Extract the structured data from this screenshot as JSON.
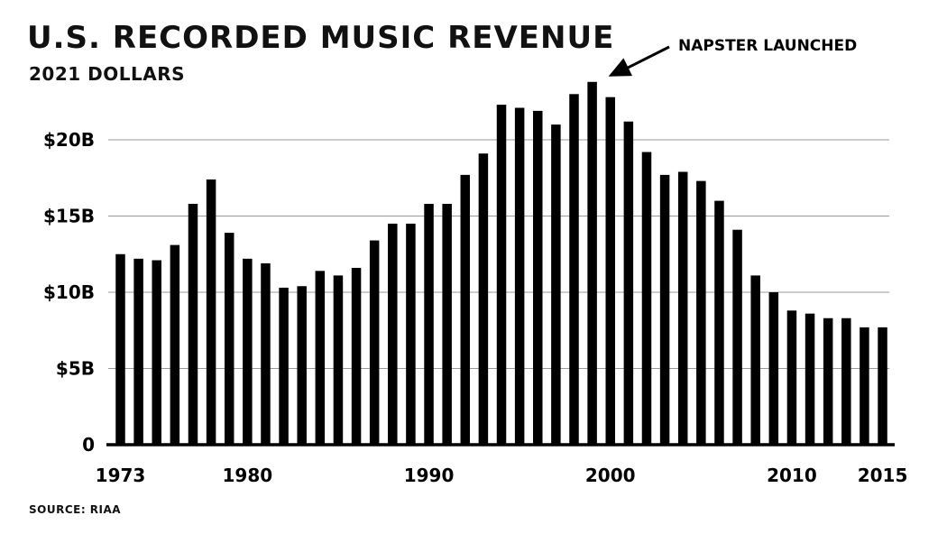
{
  "header": {
    "title": "U.S. RECORDED MUSIC REVENUE",
    "subtitle": "2021 DOLLARS"
  },
  "footer": {
    "source": "SOURCE: RIAA"
  },
  "chart_data": {
    "type": "bar",
    "ylim": [
      0,
      25
    ],
    "grid": true,
    "y_ticks": [
      {
        "value": 0,
        "label": "0"
      },
      {
        "value": 5,
        "label": "$5B"
      },
      {
        "value": 10,
        "label": "$10B"
      },
      {
        "value": 15,
        "label": "$15B"
      },
      {
        "value": 20,
        "label": "$20B"
      }
    ],
    "x_ticks": [
      {
        "value": 1973,
        "label": "1973"
      },
      {
        "value": 1980,
        "label": "1980"
      },
      {
        "value": 1990,
        "label": "1990"
      },
      {
        "value": 2000,
        "label": "2000"
      },
      {
        "value": 2010,
        "label": "2010"
      },
      {
        "value": 2015,
        "label": "2015"
      }
    ],
    "categories": [
      1973,
      1974,
      1975,
      1976,
      1977,
      1978,
      1979,
      1980,
      1981,
      1982,
      1983,
      1984,
      1985,
      1986,
      1987,
      1988,
      1989,
      1990,
      1991,
      1992,
      1993,
      1994,
      1995,
      1996,
      1997,
      1998,
      1999,
      2000,
      2001,
      2002,
      2003,
      2004,
      2005,
      2006,
      2007,
      2008,
      2009,
      2010,
      2011,
      2012,
      2013,
      2014,
      2015
    ],
    "values": [
      12.5,
      12.2,
      12.1,
      13.1,
      15.8,
      17.4,
      13.9,
      12.2,
      11.9,
      10.3,
      10.4,
      11.4,
      11.1,
      11.6,
      13.4,
      14.5,
      14.5,
      15.8,
      15.8,
      17.7,
      19.1,
      22.3,
      22.1,
      21.9,
      21.0,
      23.0,
      23.8,
      22.8,
      21.2,
      19.2,
      17.7,
      17.9,
      17.3,
      16.0,
      14.1,
      11.1,
      10.0,
      8.8,
      8.6,
      8.3,
      8.3,
      7.7,
      7.7
    ],
    "annotations": [
      {
        "text": "NAPSTER LAUNCHED",
        "x": 1999,
        "y": 23.8
      }
    ]
  }
}
